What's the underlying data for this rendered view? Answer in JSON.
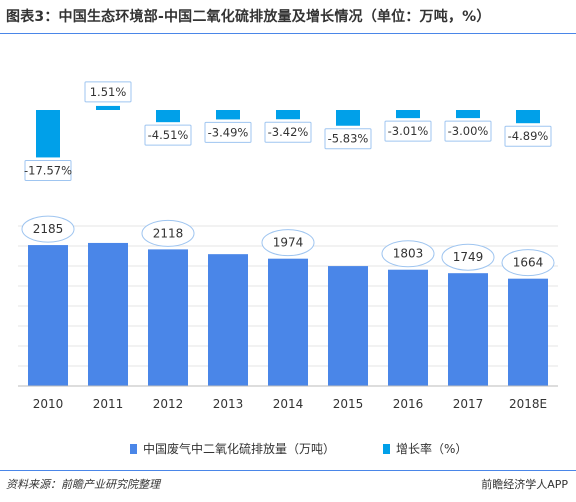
{
  "title": "图表3：中国生态环境部-中国二氧化硫排放量及增长情况（单位：万吨，%）",
  "source": "资料来源：前瞻产业研究院整理",
  "brand": "前瞻经济学人APP",
  "colors": {
    "primary": "#4a86e8",
    "growth": "#00a0e9",
    "label_border": "#9fc5f0",
    "rule": "#4a86e8",
    "text": "#333333",
    "axis": "#666666"
  },
  "chart_data": {
    "type": "bar",
    "categories": [
      "2010",
      "2011",
      "2012",
      "2013",
      "2014",
      "2015",
      "2016",
      "2017",
      "2018E"
    ],
    "series": [
      {
        "name": "中国废气中二氧化硫排放量（万吨）",
        "values": [
          2185,
          2218,
          2118,
          2044,
          1974,
          1859,
          1803,
          1749,
          1664
        ],
        "labels": [
          "2185",
          "",
          "2118",
          "",
          "1974",
          "",
          "1803",
          "1749",
          "1664"
        ]
      },
      {
        "name": "增长率（%）",
        "values": [
          -17.57,
          1.51,
          -4.51,
          -3.49,
          -3.42,
          -5.83,
          -3.01,
          -3.0,
          -4.89
        ],
        "labels": [
          "-17.57%",
          "1.51%",
          "-4.51%",
          "-3.49%",
          "-3.42%",
          "-5.83%",
          "-3.01%",
          "-3.00%",
          "-4.89%"
        ]
      }
    ],
    "legend": [
      "中国废气中二氧化硫排放量（万吨）",
      "增长率（%）"
    ],
    "legend_position": "bottom"
  }
}
